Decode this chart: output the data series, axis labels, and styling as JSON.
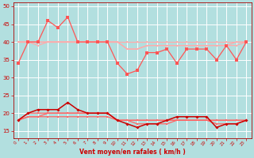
{
  "xlabel": "Vent moyen/en rafales ( km/h )",
  "background_color": "#b2dfdf",
  "grid_color": "#ffffff",
  "x_values": [
    0,
    1,
    2,
    3,
    4,
    5,
    6,
    7,
    8,
    9,
    10,
    11,
    12,
    13,
    14,
    15,
    16,
    17,
    18,
    19,
    20,
    21,
    22,
    23
  ],
  "series_rafales": [
    [
      34,
      40,
      40,
      46,
      44,
      47,
      40,
      40,
      40,
      40,
      34,
      31,
      32,
      37,
      37,
      38,
      34,
      38,
      38,
      38,
      35,
      39,
      35,
      40
    ],
    [
      40,
      40,
      40,
      40,
      40,
      40,
      40,
      40,
      40,
      40,
      40,
      40,
      40,
      40,
      40,
      40,
      40,
      40,
      40,
      40,
      40,
      40,
      40,
      40
    ],
    [
      40,
      40,
      39,
      40,
      40,
      40,
      40,
      40,
      40,
      40,
      40,
      38,
      38,
      39,
      39,
      39,
      39,
      39,
      39,
      39,
      39,
      39,
      39,
      40
    ],
    [
      40,
      40,
      40,
      40,
      40,
      40,
      40,
      40,
      40,
      40,
      40,
      38,
      38,
      39,
      39,
      39,
      39,
      39,
      39,
      39,
      39,
      39,
      40,
      40
    ]
  ],
  "series_vent": [
    [
      18,
      20,
      21,
      21,
      21,
      23,
      21,
      20,
      20,
      20,
      18,
      17,
      16,
      17,
      17,
      18,
      19,
      19,
      19,
      19,
      16,
      17,
      17,
      18
    ],
    [
      18,
      19,
      19,
      20,
      20,
      20,
      20,
      20,
      20,
      20,
      18,
      18,
      18,
      18,
      18,
      18,
      18,
      18,
      18,
      18,
      18,
      18,
      18,
      18
    ],
    [
      18,
      19,
      19,
      19,
      19,
      19,
      19,
      19,
      19,
      19,
      18,
      18,
      18,
      18,
      18,
      18,
      18,
      18,
      18,
      18,
      18,
      18,
      18,
      18
    ],
    [
      18,
      20,
      20,
      20,
      20,
      20,
      20,
      20,
      20,
      20,
      18,
      18,
      17,
      17,
      17,
      17,
      18,
      18,
      18,
      18,
      17,
      17,
      17,
      18
    ]
  ],
  "color_rafales_main": "#ff5555",
  "color_rafales_light": "#ffaaaa",
  "color_vent_main": "#cc0000",
  "color_vent_light": "#ff6666",
  "ylim": [
    13,
    51
  ],
  "yticks": [
    15,
    20,
    25,
    30,
    35,
    40,
    45,
    50
  ],
  "marker_size": 1.8,
  "line_width": 0.9
}
